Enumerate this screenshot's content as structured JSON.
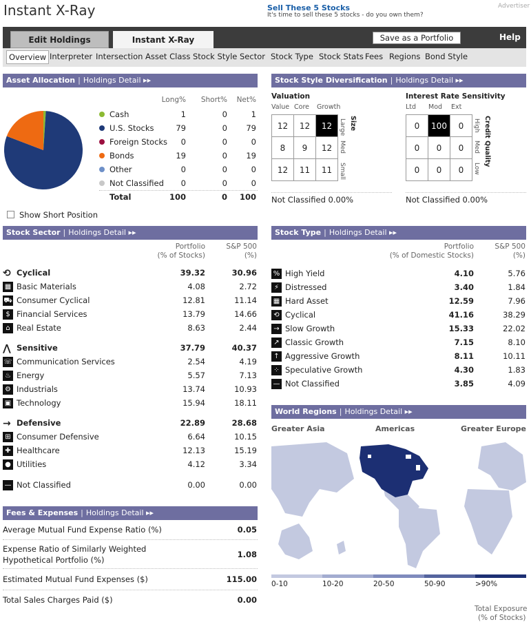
{
  "page_title": "Instant X-Ray",
  "ad": {
    "headline": "Sell These 5 Stocks",
    "text": "It's time to sell these 5 stocks - do you own them?",
    "label": "Advertiser"
  },
  "tabs": {
    "edit": "Edit Holdings",
    "xray": "Instant X-Ray",
    "save": "Save as a Portfolio",
    "help": "Help"
  },
  "subnav": [
    "Overview",
    "Interpreter",
    "Intersection",
    "Asset Class",
    "Stock Style",
    "Sector",
    "Stock Type",
    "Stock Stats",
    "Fees",
    "Regions",
    "Bond Style"
  ],
  "holdings_detail": "Holdings Detail",
  "asset_allocation": {
    "title": "Asset Allocation",
    "cols": [
      "Long%",
      "Short%",
      "Net%"
    ],
    "rows": [
      {
        "name": "Cash",
        "long": "1",
        "short": "0",
        "net": "1",
        "color": "#8cba33"
      },
      {
        "name": "U.S. Stocks",
        "long": "79",
        "short": "0",
        "net": "79",
        "color": "#1f3a78"
      },
      {
        "name": "Foreign Stocks",
        "long": "0",
        "short": "0",
        "net": "0",
        "color": "#9b1040"
      },
      {
        "name": "Bonds",
        "long": "19",
        "short": "0",
        "net": "19",
        "color": "#ee6a12"
      },
      {
        "name": "Other",
        "long": "0",
        "short": "0",
        "net": "0",
        "color": "#6e90c8"
      },
      {
        "name": "Not Classified",
        "long": "0",
        "short": "0",
        "net": "0",
        "color": "#c8c8c8"
      }
    ],
    "total": {
      "name": "Total",
      "long": "100",
      "short": "0",
      "net": "100"
    },
    "show_short": "Show Short Position"
  },
  "style": {
    "title": "Stock Style Diversification",
    "valuation": {
      "title": "Valuation",
      "cols": [
        "Value",
        "Core",
        "Growth"
      ],
      "side": "Size",
      "rows_labels": [
        "Large",
        "Med",
        "Small"
      ],
      "grid": [
        [
          "12",
          "12",
          "12"
        ],
        [
          "8",
          "9",
          "12"
        ],
        [
          "12",
          "11",
          "11"
        ]
      ],
      "not_classified": "Not Classified 0.00%"
    },
    "interest": {
      "title": "Interest Rate Sensitivity",
      "cols": [
        "Ltd",
        "Mod",
        "Ext"
      ],
      "side": "Credit Quality",
      "rows_labels": [
        "High",
        "Med",
        "Low"
      ],
      "grid": [
        [
          "0",
          "100",
          "0"
        ],
        [
          "0",
          "0",
          "0"
        ],
        [
          "0",
          "0",
          "0"
        ]
      ],
      "not_classified": "Not Classified 0.00%"
    }
  },
  "sector": {
    "title": "Stock Sector",
    "col1": "Portfolio",
    "col1b": "(% of Stocks)",
    "col2": "S&P 500",
    "col2b": "(%)",
    "groups": [
      {
        "name": "Cyclical",
        "p": "39.32",
        "s": "30.96",
        "items": [
          {
            "name": "Basic Materials",
            "p": "4.08",
            "s": "2.72"
          },
          {
            "name": "Consumer Cyclical",
            "p": "12.81",
            "s": "11.14"
          },
          {
            "name": "Financial Services",
            "p": "13.79",
            "s": "14.66"
          },
          {
            "name": "Real Estate",
            "p": "8.63",
            "s": "2.44"
          }
        ]
      },
      {
        "name": "Sensitive",
        "p": "37.79",
        "s": "40.37",
        "items": [
          {
            "name": "Communication Services",
            "p": "2.54",
            "s": "4.19"
          },
          {
            "name": "Energy",
            "p": "5.57",
            "s": "7.13"
          },
          {
            "name": "Industrials",
            "p": "13.74",
            "s": "10.93"
          },
          {
            "name": "Technology",
            "p": "15.94",
            "s": "18.11"
          }
        ]
      },
      {
        "name": "Defensive",
        "p": "22.89",
        "s": "28.68",
        "items": [
          {
            "name": "Consumer Defensive",
            "p": "6.64",
            "s": "10.15"
          },
          {
            "name": "Healthcare",
            "p": "12.13",
            "s": "15.19"
          },
          {
            "name": "Utilities",
            "p": "4.12",
            "s": "3.34"
          }
        ]
      }
    ],
    "not_classified": {
      "name": "Not Classified",
      "p": "0.00",
      "s": "0.00"
    }
  },
  "stock_type": {
    "title": "Stock Type",
    "col1": "Portfolio",
    "col1b": "(% of Domestic Stocks)",
    "col2": "S&P 500",
    "col2b": "(%)",
    "rows": [
      {
        "name": "High Yield",
        "p": "4.10",
        "s": "5.76"
      },
      {
        "name": "Distressed",
        "p": "3.40",
        "s": "1.84"
      },
      {
        "name": "Hard Asset",
        "p": "12.59",
        "s": "7.96"
      },
      {
        "name": "Cyclical",
        "p": "41.16",
        "s": "38.29"
      },
      {
        "name": "Slow Growth",
        "p": "15.33",
        "s": "22.02"
      },
      {
        "name": "Classic Growth",
        "p": "7.15",
        "s": "8.10"
      },
      {
        "name": "Aggressive Growth",
        "p": "8.11",
        "s": "10.11"
      },
      {
        "name": "Speculative Growth",
        "p": "4.30",
        "s": "1.83"
      },
      {
        "name": "Not Classified",
        "p": "3.85",
        "s": "4.09"
      }
    ]
  },
  "fees": {
    "title": "Fees & Expenses",
    "rows": [
      {
        "name": "Average Mutual Fund Expense Ratio (%)",
        "v": "0.05"
      },
      {
        "name": "Expense Ratio of Similarly Weighted",
        "name2": "Hypothetical Portfolio (%)",
        "v": "1.08"
      },
      {
        "name": "Estimated Mutual Fund Expenses ($)",
        "v": "115.00"
      },
      {
        "name": "Total Sales Charges Paid ($)",
        "v": "0.00"
      }
    ]
  },
  "regions": {
    "title": "World Regions",
    "labels": [
      "Greater Asia",
      "Americas",
      "Greater Europe"
    ],
    "legend": [
      "0-10",
      "10-20",
      "20-50",
      "50-90",
      ">90%"
    ],
    "legend_colors": [
      "#c3c9e0",
      "#a3acd0",
      "#7f8bbd",
      "#55649e",
      "#1c2f73"
    ],
    "total_exposure": "Total Exposure",
    "total_exposure2": "(% of Stocks)"
  }
}
